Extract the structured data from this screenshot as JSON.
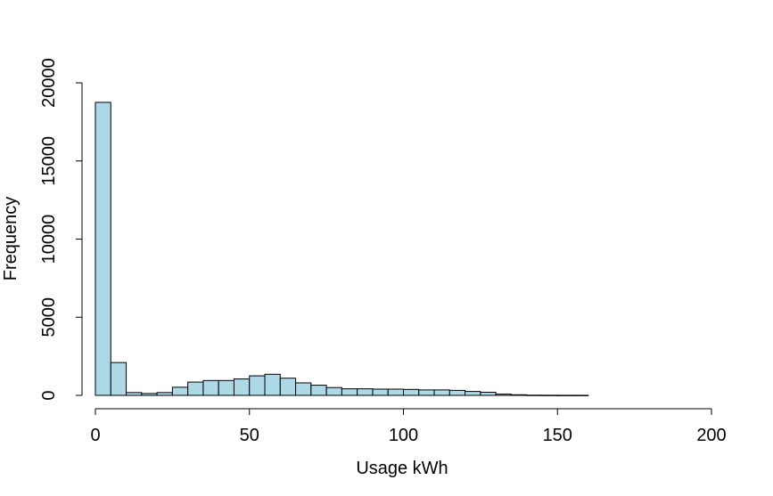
{
  "chart_data": {
    "type": "bar",
    "subtype": "histogram",
    "title": "",
    "xlabel": "Usage kWh",
    "ylabel": "Frequency",
    "bin_width": 5,
    "bin_start": 0,
    "values": [
      18750,
      2100,
      180,
      120,
      180,
      520,
      850,
      950,
      950,
      1050,
      1250,
      1350,
      1100,
      800,
      650,
      500,
      420,
      420,
      400,
      400,
      380,
      350,
      350,
      320,
      250,
      200,
      80,
      40,
      15,
      10,
      5,
      5
    ],
    "xlim": [
      0,
      200
    ],
    "ylim": [
      0,
      20000
    ],
    "xticks": [
      0,
      50,
      100,
      150,
      200
    ],
    "yticks": [
      0,
      5000,
      10000,
      15000,
      20000
    ],
    "bar_color": "#ADD8E6",
    "grid": false
  }
}
